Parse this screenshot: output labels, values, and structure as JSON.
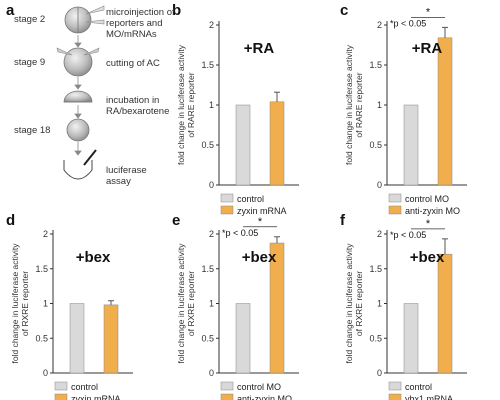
{
  "panels": {
    "a": "a",
    "b": "b",
    "c": "c",
    "d": "d",
    "e": "e",
    "f": "f"
  },
  "workflow": {
    "stages": [
      {
        "stage": "stage 2",
        "step": "microinjection of reporters and MO/mRNAs"
      },
      {
        "stage": "stage 9",
        "step": "cutting of AC"
      },
      {
        "stage": "",
        "step": "incubation in RA/bexarotene"
      },
      {
        "stage": "stage 18",
        "step": ""
      },
      {
        "stage": "",
        "step": "luciferase assay"
      }
    ]
  },
  "colors": {
    "control_bar": "#d9d9d9",
    "treatment_bar": "#f0ae4c",
    "axis": "#333333"
  },
  "chart_data": [
    {
      "panel": "b",
      "type": "bar",
      "ylabel": "fold change in luciferase activity of RARE reporter",
      "ylim": [
        0,
        2
      ],
      "yticks": [
        "0",
        "0.5",
        "1",
        "1.5",
        "2"
      ],
      "treatment": "+RA",
      "categories": [
        "control",
        "zyxin mRNA"
      ],
      "values": [
        1.0,
        1.04
      ],
      "errors": [
        0,
        0.12
      ],
      "significance": ""
    },
    {
      "panel": "c",
      "type": "bar",
      "ylabel": "fold change in luciferase activity of RARE reporter",
      "ylim": [
        0,
        2
      ],
      "yticks": [
        "0",
        "0.5",
        "1",
        "1.5",
        "2"
      ],
      "treatment": "+RA",
      "categories": [
        "control MO",
        "anti-zyxin MO"
      ],
      "values": [
        1.0,
        1.84
      ],
      "errors": [
        0,
        0.13
      ],
      "significance": "*p < 0.05"
    },
    {
      "panel": "d",
      "type": "bar",
      "ylabel": "fold change in luciferase activity of RXRE reporter",
      "ylim": [
        0,
        2
      ],
      "yticks": [
        "0",
        "0.5",
        "1",
        "1.5",
        "2"
      ],
      "treatment": "+bex",
      "categories": [
        "control",
        "zyxin mRNA"
      ],
      "values": [
        1.0,
        0.98
      ],
      "errors": [
        0,
        0.06
      ],
      "significance": ""
    },
    {
      "panel": "e",
      "type": "bar",
      "ylabel": "fold change in luciferase activity of RXRE reporter",
      "ylim": [
        0,
        2
      ],
      "yticks": [
        "0",
        "0.5",
        "1",
        "1.5",
        "2"
      ],
      "treatment": "+bex",
      "categories": [
        "control MO",
        "anti-zyxin MO"
      ],
      "values": [
        1.0,
        1.87
      ],
      "errors": [
        0,
        0.09
      ],
      "significance": "*p < 0.05"
    },
    {
      "panel": "f",
      "type": "bar",
      "ylabel": "fold change in luciferase activity of RXRE reporter",
      "ylim": [
        0,
        2
      ],
      "yticks": [
        "0",
        "0.5",
        "1",
        "1.5",
        "2"
      ],
      "treatment": "+bex",
      "categories": [
        "control",
        "ybx1 mRNA"
      ],
      "values": [
        1.0,
        1.71
      ],
      "errors": [
        0,
        0.22
      ],
      "significance": "*p < 0.05"
    }
  ]
}
